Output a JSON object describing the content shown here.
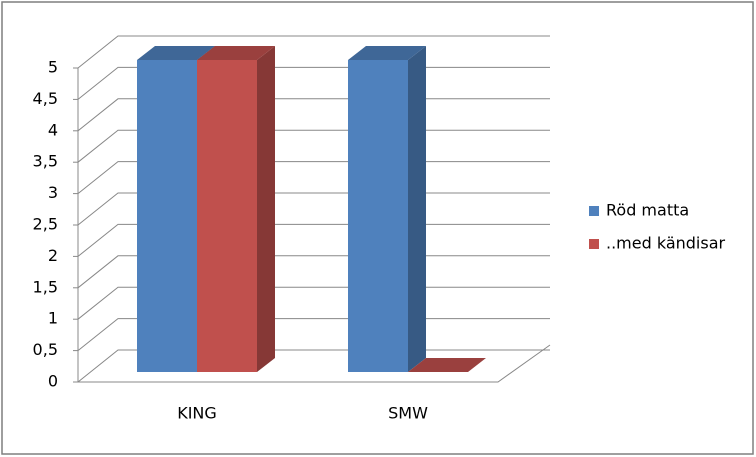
{
  "chart_data": {
    "type": "bar3d",
    "categories": [
      "KING",
      "SMW"
    ],
    "series": [
      {
        "name": "Röd matta",
        "color": "#4f81bd",
        "values": [
          5,
          5
        ]
      },
      {
        "name": "..med kändisar",
        "color": "#c0504d",
        "values": [
          5,
          0
        ]
      }
    ],
    "ylim": [
      0,
      5
    ],
    "yticks": [
      0,
      {
        "value": 0.5,
        "label": "0,5"
      },
      1,
      {
        "value": 1.5,
        "label": "1,5"
      },
      2,
      {
        "value": 2.5,
        "label": "2,5"
      },
      3,
      {
        "value": 3.5,
        "label": "3,5"
      },
      4,
      {
        "value": 4.5,
        "label": "4,5"
      },
      5
    ],
    "grid": true
  }
}
